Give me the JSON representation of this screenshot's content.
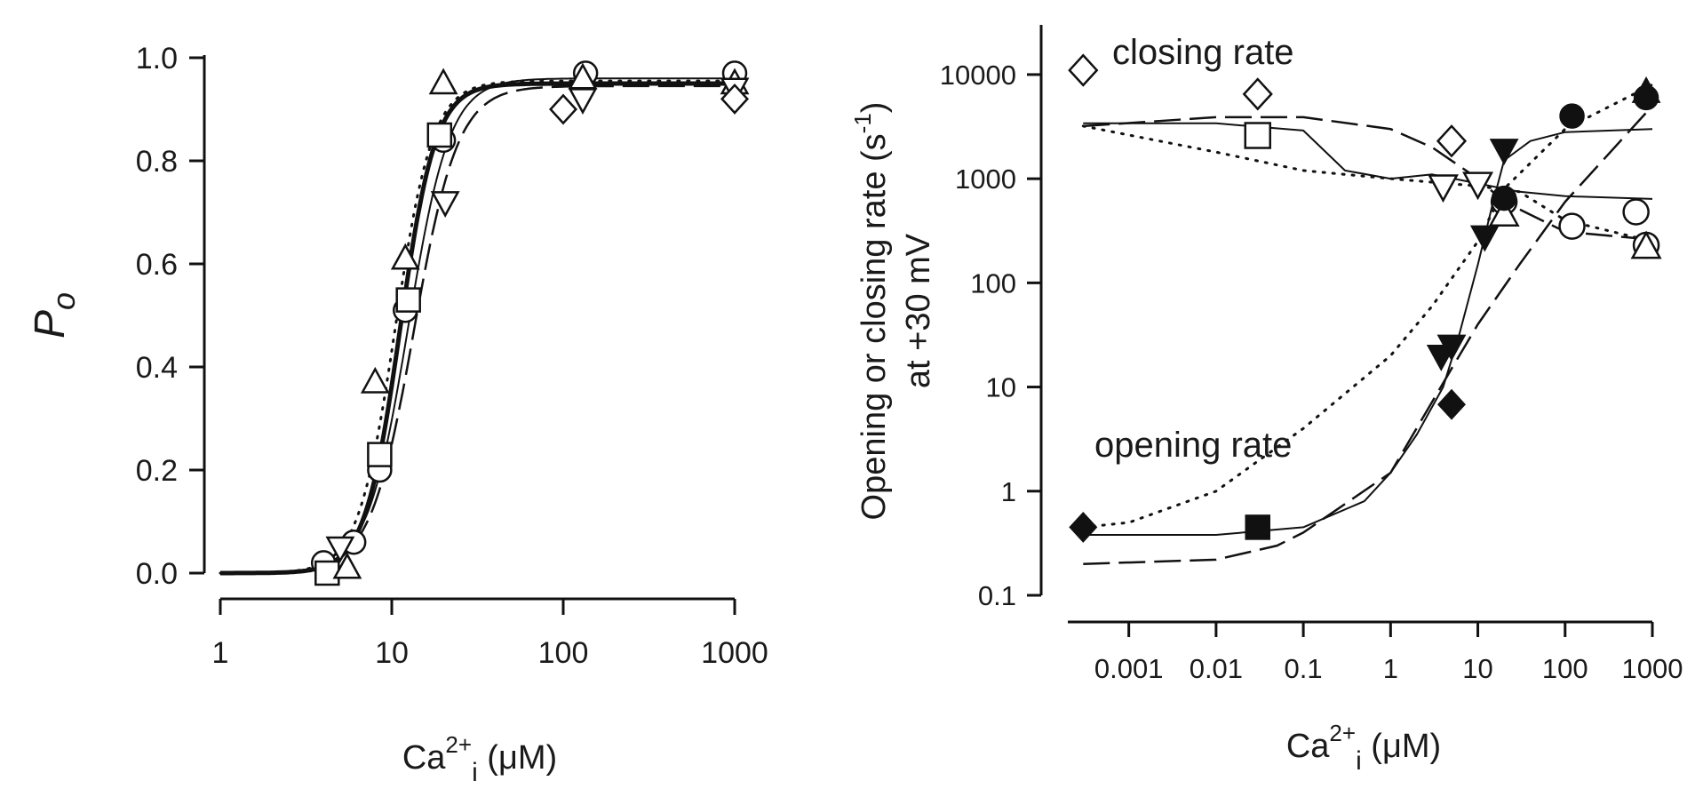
{
  "chart_data": [
    {
      "type": "scatter",
      "xscale": "log",
      "xlim": [
        1,
        1000
      ],
      "ylim": [
        0,
        1.0
      ],
      "xticks": [
        "1",
        "10",
        "100",
        "1000"
      ],
      "yticks": [
        "0.0",
        "0.2",
        "0.4",
        "0.6",
        "0.8",
        "1.0"
      ],
      "ylabel": "P",
      "ylabel_sub": "o",
      "xlabel": {
        "base": "Ca",
        "sup": "2+",
        "sub": "i",
        "unit": "(μM)"
      },
      "series": [
        {
          "marker": "circle",
          "x": [
            4,
            6,
            8.5,
            12,
            20,
            135,
            1000
          ],
          "y": [
            0.02,
            0.06,
            0.2,
            0.51,
            0.84,
            0.97,
            0.97
          ]
        },
        {
          "marker": "square",
          "x": [
            4.2,
            8.5,
            12.5,
            19
          ],
          "y": [
            0.0,
            0.23,
            0.53,
            0.85
          ]
        },
        {
          "marker": "triangle-up",
          "x": [
            5.5,
            8.0,
            12.0,
            20.0,
            130,
            1000
          ],
          "y": [
            0.01,
            0.37,
            0.61,
            0.95,
            0.96,
            0.95
          ]
        },
        {
          "marker": "triangle-down",
          "x": [
            5,
            20.5,
            130,
            1000
          ],
          "y": [
            0.05,
            0.72,
            0.92,
            0.94
          ]
        },
        {
          "marker": "diamond",
          "x": [
            100,
            1000
          ],
          "y": [
            0.9,
            0.92
          ]
        }
      ],
      "fits": [
        {
          "style": "thick",
          "top": 0.95,
          "k": 11.2,
          "n": 4.2
        },
        {
          "style": "thin",
          "top": 0.96,
          "k": 12.5,
          "n": 3.6
        },
        {
          "style": "dotted",
          "top": 0.955,
          "k": 10.5,
          "n": 4.0
        },
        {
          "style": "dashed",
          "top": 0.945,
          "k": 13.5,
          "n": 3.4
        }
      ]
    },
    {
      "type": "scatter",
      "xscale": "log",
      "yscale": "log",
      "xlim": [
        0.0002,
        1000
      ],
      "ylim": [
        0.1,
        30000
      ],
      "xticks": [
        "0.001",
        "0.01",
        "0.1",
        "1",
        "10",
        "100",
        "1000"
      ],
      "yticks": [
        "0.1",
        "1",
        "10",
        "100",
        "1000",
        "10000"
      ],
      "ylabel": "Opening or closing rate (s",
      "ylabel_sup": "-1",
      "ylabel_close": ")",
      "ylabel2": "at +30 mV",
      "xlabel": {
        "base": "Ca",
        "sup": "2+",
        "sub": "i",
        "unit": "(μM)"
      },
      "annotations": [
        "closing rate",
        "opening rate"
      ],
      "closing_series": [
        {
          "marker": "diamond",
          "x": [
            0.0003,
            0.03,
            5
          ],
          "y": [
            11000,
            6500,
            2300
          ]
        },
        {
          "marker": "square",
          "x": [
            0.03
          ],
          "y": [
            2600
          ]
        },
        {
          "marker": "triangle-down",
          "x": [
            4,
            10
          ],
          "y": [
            850,
            900
          ]
        },
        {
          "marker": "circle",
          "x": [
            20,
            120,
            650
          ],
          "y": [
            600,
            350,
            480
          ]
        },
        {
          "marker": "circle",
          "x": [
            850
          ],
          "y": [
            230
          ]
        },
        {
          "marker": "triangle-up",
          "x": [
            20,
            850
          ],
          "y": [
            450,
            220
          ]
        }
      ],
      "opening_series": [
        {
          "marker": "diamond",
          "x": [
            0.0003,
            5
          ],
          "y": [
            0.45,
            6.8
          ]
        },
        {
          "marker": "square",
          "x": [
            0.03
          ],
          "y": [
            0.45
          ]
        },
        {
          "marker": "triangle-down",
          "x": [
            3.8,
            5,
            12,
            20
          ],
          "y": [
            20,
            25,
            280,
            1900
          ]
        },
        {
          "marker": "circle",
          "x": [
            20,
            120,
            850
          ],
          "y": [
            650,
            4000,
            6000
          ]
        },
        {
          "marker": "triangle-up",
          "x": [
            850
          ],
          "y": [
            6800
          ]
        }
      ],
      "fits": [
        {
          "style": "thin",
          "x": [
            0.0003,
            0.01,
            0.1,
            0.3,
            1,
            3,
            10,
            30,
            100,
            1000
          ],
          "y": [
            3400,
            3400,
            2900,
            1200,
            1000,
            1100,
            900,
            750,
            680,
            640
          ]
        },
        {
          "style": "dashed",
          "x": [
            0.0003,
            0.01,
            0.1,
            1,
            3,
            10,
            20,
            100,
            1000
          ],
          "y": [
            3200,
            3900,
            3900,
            3000,
            2000,
            1000,
            600,
            310,
            260
          ]
        },
        {
          "style": "dotted",
          "x": [
            0.0003,
            0.01,
            0.1,
            1,
            10,
            30,
            100,
            1000
          ],
          "y": [
            3200,
            1800,
            1200,
            1000,
            850,
            750,
            400,
            250
          ]
        },
        {
          "style": "thin",
          "x": [
            0.0003,
            0.01,
            0.1,
            0.5,
            1,
            2,
            4,
            6,
            10,
            15,
            20,
            40,
            100,
            1000
          ],
          "y": [
            0.38,
            0.38,
            0.45,
            0.8,
            1.5,
            3.5,
            10,
            30,
            150,
            600,
            1500,
            2300,
            2800,
            3000
          ]
        },
        {
          "style": "dashed",
          "x": [
            0.0003,
            0.01,
            0.05,
            0.1,
            1,
            5,
            10,
            30,
            100,
            1000
          ],
          "y": [
            0.2,
            0.22,
            0.3,
            0.4,
            1.5,
            15,
            40,
            150,
            600,
            5000
          ]
        },
        {
          "style": "dotted",
          "x": [
            0.0003,
            0.001,
            0.01,
            0.1,
            1,
            3,
            10,
            20,
            100,
            1000
          ],
          "y": [
            0.45,
            0.5,
            1.0,
            4,
            20,
            60,
            250,
            800,
            3000,
            8000
          ]
        }
      ]
    }
  ]
}
